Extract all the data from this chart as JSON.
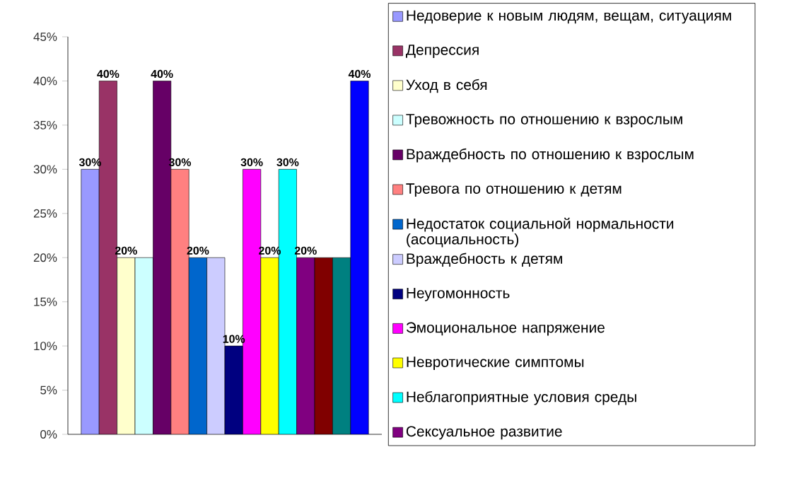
{
  "chart_data": {
    "type": "bar",
    "categories": [
      null
    ],
    "ylim": [
      0,
      45
    ],
    "yticks": [
      {
        "value": 0,
        "label": "0%"
      },
      {
        "value": 5,
        "label": "5%"
      },
      {
        "value": 10,
        "label": "10%"
      },
      {
        "value": 15,
        "label": "15%"
      },
      {
        "value": 20,
        "label": "20%"
      },
      {
        "value": 25,
        "label": "25%"
      },
      {
        "value": 30,
        "label": "30%"
      },
      {
        "value": 35,
        "label": "35%"
      },
      {
        "value": 40,
        "label": "40%"
      },
      {
        "value": 45,
        "label": "45%"
      }
    ],
    "legend": "right",
    "series": [
      {
        "name": "Недоверие к новым людям, вещам, ситуациям",
        "color": "#9999ff",
        "values": [
          30
        ],
        "value_labels": [
          "30%"
        ]
      },
      {
        "name": "Депрессия",
        "color": "#993366",
        "values": [
          40
        ],
        "value_labels": [
          "40%"
        ]
      },
      {
        "name": "Уход в себя",
        "color": "#ffffcc",
        "values": [
          20
        ],
        "value_labels": [
          "20%"
        ]
      },
      {
        "name": "Тревожность по отношению к взрослым",
        "color": "#ccffff",
        "values": [
          20
        ],
        "value_labels": [
          null
        ]
      },
      {
        "name": "Враждебность по отношению к взрослым",
        "color": "#660066",
        "values": [
          40
        ],
        "value_labels": [
          "40%"
        ]
      },
      {
        "name": "Тревога по отношению к детям",
        "color": "#ff8080",
        "values": [
          30
        ],
        "value_labels": [
          "30%"
        ]
      },
      {
        "name": "Недостаток социальной нормальности (асоциальность)",
        "color": "#0066cc",
        "values": [
          20
        ],
        "value_labels": [
          "20%"
        ]
      },
      {
        "name": "Враждебность к детям",
        "color": "#ccccff",
        "values": [
          20
        ],
        "value_labels": [
          null
        ]
      },
      {
        "name": "Неугомонность",
        "color": "#000080",
        "values": [
          10
        ],
        "value_labels": [
          "10%"
        ]
      },
      {
        "name": "Эмоциональное напряжение",
        "color": "#ff00ff",
        "values": [
          30
        ],
        "value_labels": [
          "30%"
        ]
      },
      {
        "name": "Невротические симптомы",
        "color": "#ffff00",
        "values": [
          20
        ],
        "value_labels": [
          "20%"
        ]
      },
      {
        "name": "Неблагоприятные условия среды",
        "color": "#00ffff",
        "values": [
          30
        ],
        "value_labels": [
          "30%"
        ]
      },
      {
        "name": "Сексуальное развитие",
        "color": "#800080",
        "values": [
          20
        ],
        "value_labels": [
          "20%"
        ]
      },
      {
        "color": "#800000",
        "values": [
          20
        ],
        "value_labels": [
          null
        ]
      },
      {
        "color": "#008080",
        "values": [
          20
        ],
        "value_labels": [
          null
        ]
      },
      {
        "color": "#0000ff",
        "values": [
          40
        ],
        "value_labels": [
          "40%"
        ]
      }
    ]
  }
}
